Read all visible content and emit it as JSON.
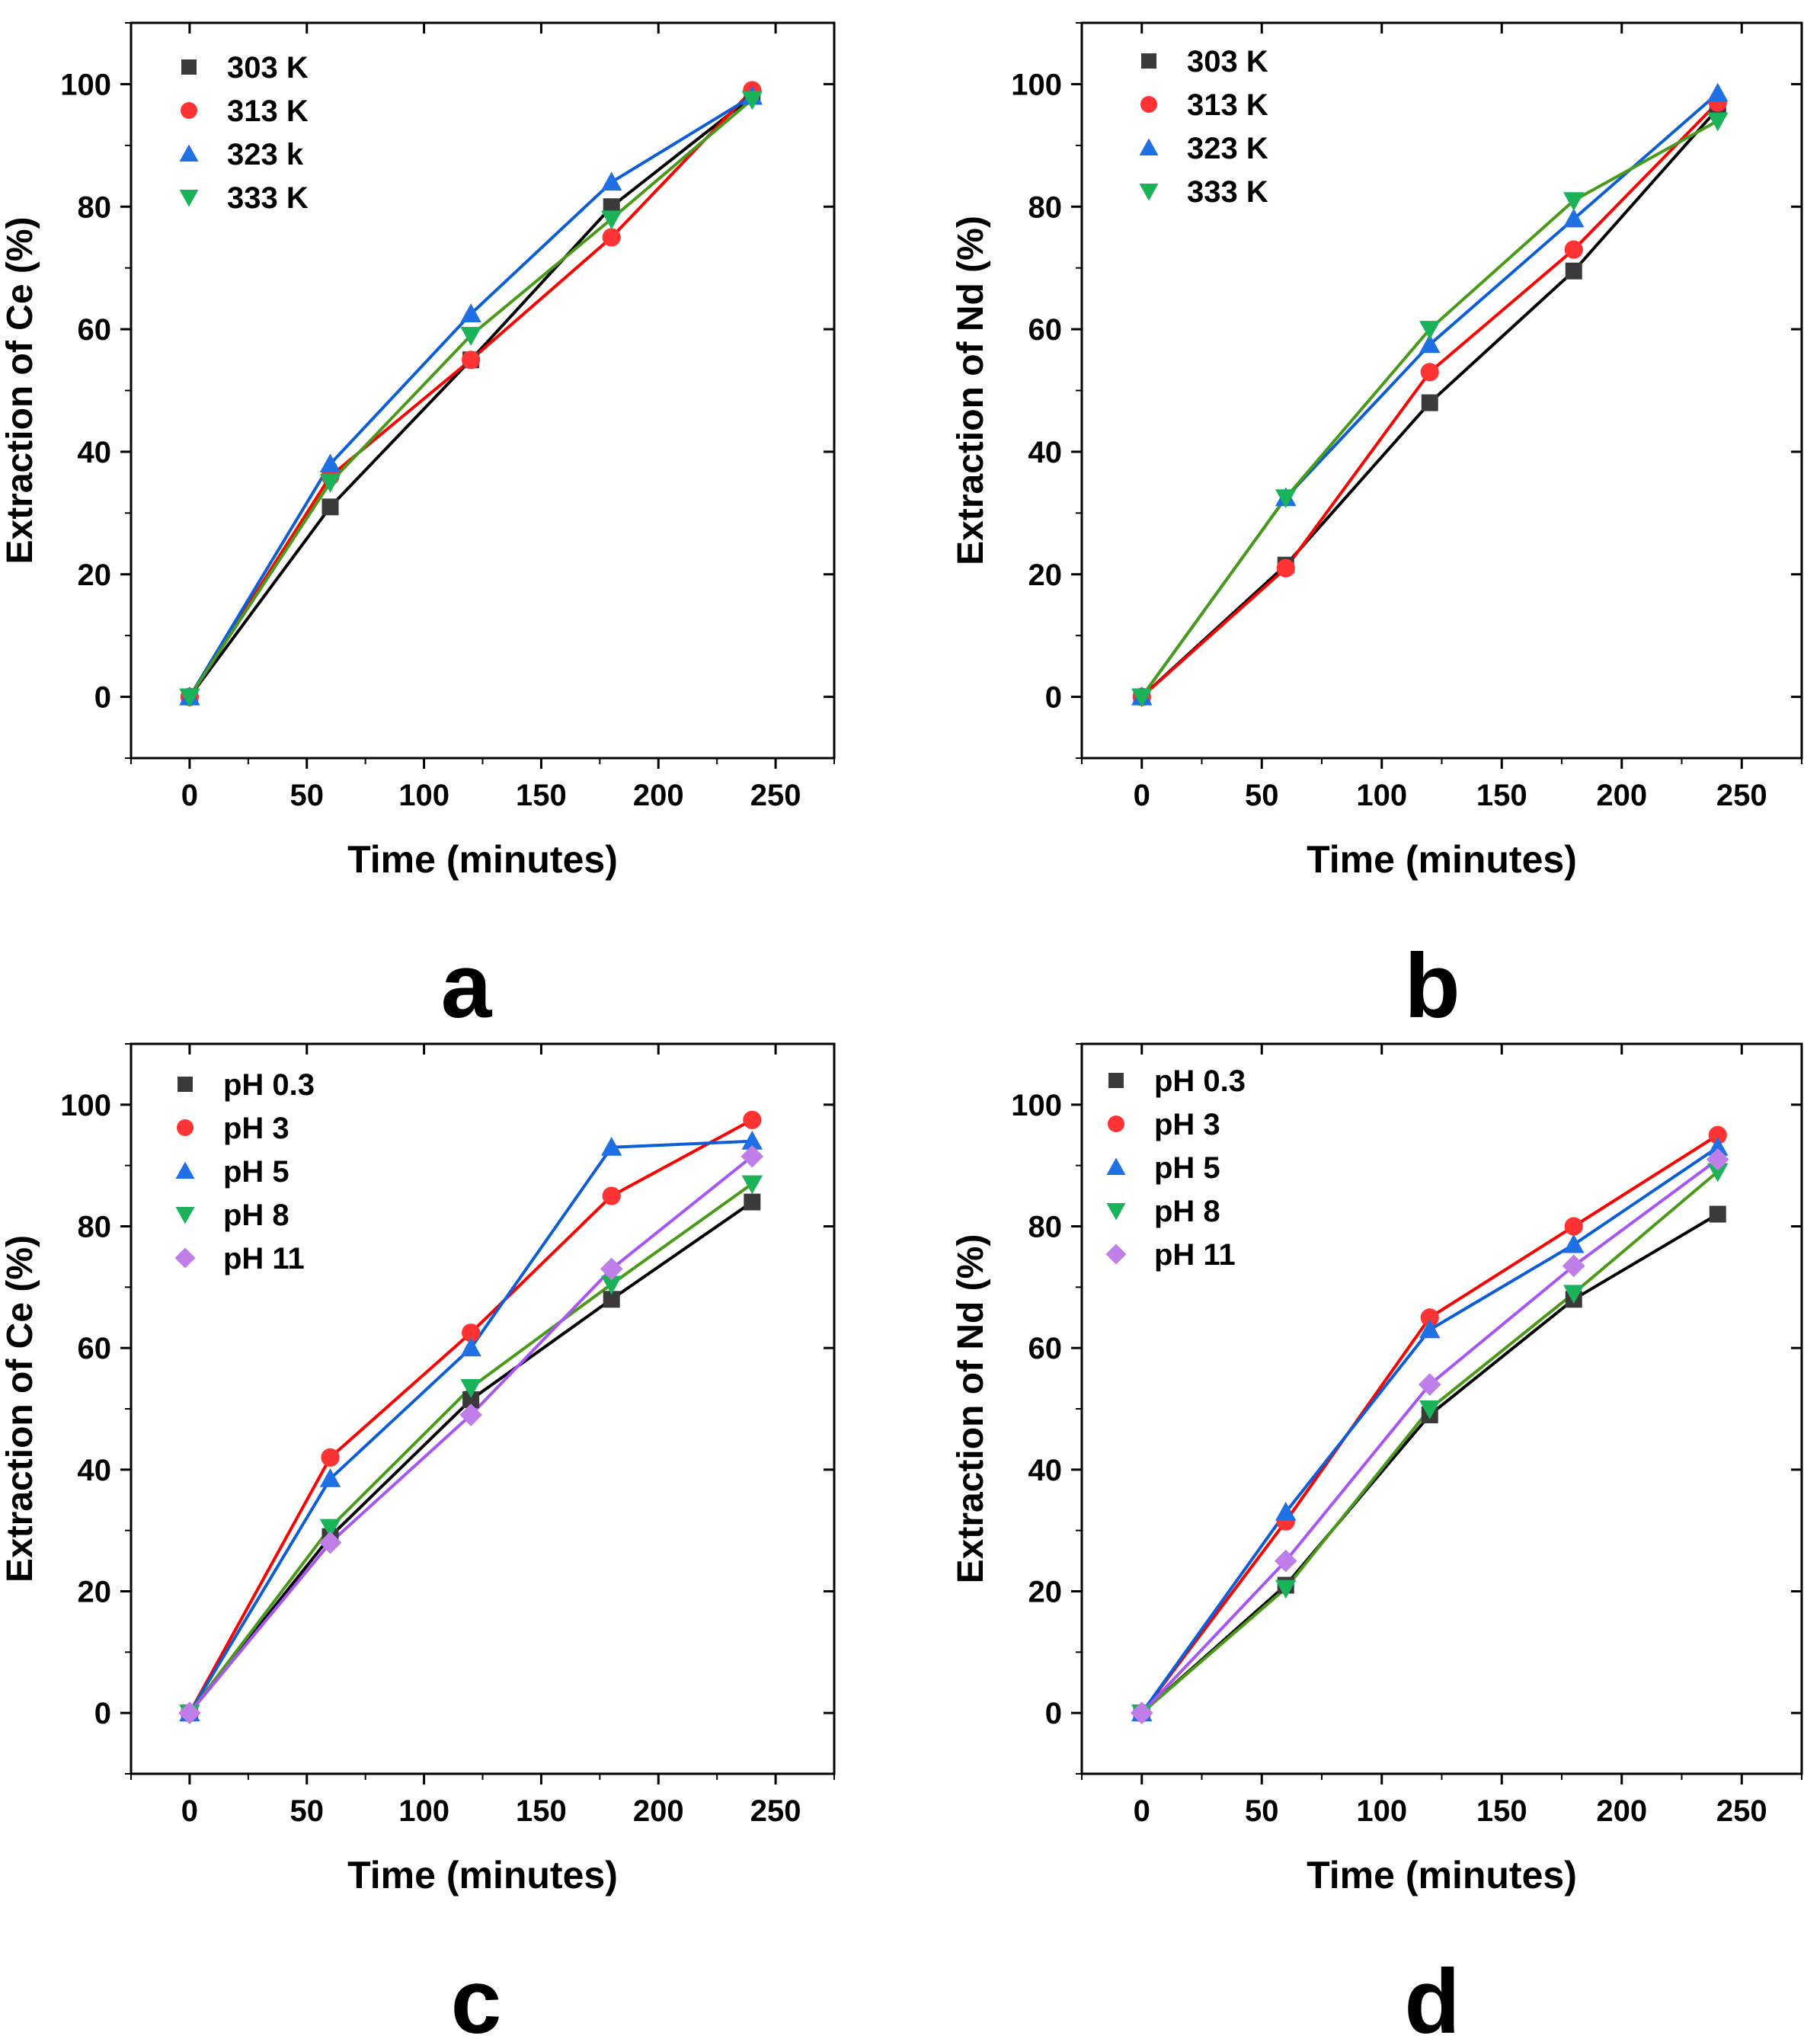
{
  "chart_data": [
    {
      "type": "line",
      "panel_label": "a",
      "xlabel": "Time (minutes)",
      "ylabel": "Extraction of Ce (%)",
      "xlim": [
        -25,
        275
      ],
      "ylim": [
        -10,
        110
      ],
      "xticks": [
        "0",
        "50",
        "100",
        "150",
        "200",
        "250"
      ],
      "xtick_values": [
        0,
        50,
        100,
        150,
        200,
        250
      ],
      "yticks": [
        "0",
        "20",
        "40",
        "60",
        "80",
        "100"
      ],
      "ytick_values": [
        0,
        20,
        40,
        60,
        80,
        100
      ],
      "legend_position": "top-left",
      "x": [
        0,
        60,
        120,
        180,
        240
      ],
      "series": [
        {
          "name": "303 K",
          "marker": "square",
          "color": "#000000",
          "marker_color": "#3a3a3a",
          "values": [
            0,
            31,
            55,
            80,
            98
          ]
        },
        {
          "name": "313 K",
          "marker": "circle",
          "color": "#ff0000",
          "marker_color": "#ff3333",
          "values": [
            0,
            36,
            55,
            75,
            99
          ]
        },
        {
          "name": "323 k",
          "marker": "triangle-up",
          "color": "#0b5ed7",
          "marker_color": "#1f6fe5",
          "values": [
            0,
            38,
            62.5,
            84,
            98
          ]
        },
        {
          "name": "333 K",
          "marker": "triangle-down",
          "color": "#4a9a1a",
          "marker_color": "#1bb35a",
          "values": [
            0,
            35,
            59,
            78,
            97.5
          ]
        }
      ]
    },
    {
      "type": "line",
      "panel_label": "b",
      "xlabel": "Time (minutes)",
      "ylabel": "Extraction of Nd (%)",
      "xlim": [
        -25,
        275
      ],
      "ylim": [
        -10,
        110
      ],
      "xticks": [
        "0",
        "50",
        "100",
        "150",
        "200",
        "250"
      ],
      "xtick_values": [
        0,
        50,
        100,
        150,
        200,
        250
      ],
      "yticks": [
        "0",
        "20",
        "40",
        "60",
        "80",
        "100"
      ],
      "ytick_values": [
        0,
        20,
        40,
        60,
        80,
        100
      ],
      "legend_position": "top-left",
      "x": [
        0,
        60,
        120,
        180,
        240
      ],
      "series": [
        {
          "name": "303 K",
          "marker": "square",
          "color": "#000000",
          "marker_color": "#3a3a3a",
          "values": [
            0,
            21.5,
            48,
            69.5,
            96
          ]
        },
        {
          "name": "313 K",
          "marker": "circle",
          "color": "#ff0000",
          "marker_color": "#ff3333",
          "values": [
            0,
            21,
            53,
            73,
            97
          ]
        },
        {
          "name": "323 K",
          "marker": "triangle-up",
          "color": "#0b5ed7",
          "marker_color": "#1f6fe5",
          "values": [
            0,
            32.5,
            57.5,
            78,
            98.5
          ]
        },
        {
          "name": "333 K",
          "marker": "triangle-down",
          "color": "#4a9a1a",
          "marker_color": "#1bb35a",
          "values": [
            0,
            32.5,
            60,
            81,
            94
          ]
        }
      ]
    },
    {
      "type": "line",
      "panel_label": "c",
      "xlabel": "Time (minutes)",
      "ylabel": "Extraction of Ce (%)",
      "xlim": [
        -25,
        275
      ],
      "ylim": [
        -10,
        110
      ],
      "xticks": [
        "0",
        "50",
        "100",
        "150",
        "200",
        "250"
      ],
      "xtick_values": [
        0,
        50,
        100,
        150,
        200,
        250
      ],
      "yticks": [
        "0",
        "20",
        "40",
        "60",
        "80",
        "100"
      ],
      "ytick_values": [
        0,
        20,
        40,
        60,
        80,
        100
      ],
      "legend_position": "top-left",
      "x": [
        0,
        60,
        120,
        180,
        240
      ],
      "series": [
        {
          "name": "pH 0.3",
          "marker": "square",
          "color": "#000000",
          "marker_color": "#3a3a3a",
          "values": [
            0,
            29,
            51.5,
            68,
            84
          ]
        },
        {
          "name": "pH 3",
          "marker": "circle",
          "color": "#ff0000",
          "marker_color": "#ff3333",
          "values": [
            0,
            42,
            62.5,
            85,
            97.5
          ]
        },
        {
          "name": "pH 5",
          "marker": "triangle-up",
          "color": "#0b5ed7",
          "marker_color": "#1f6fe5",
          "values": [
            0,
            38.5,
            60,
            93,
            94
          ]
        },
        {
          "name": "pH 8",
          "marker": "triangle-down",
          "color": "#4a9a1a",
          "marker_color": "#1bb35a",
          "values": [
            0,
            30.5,
            53.5,
            70.5,
            87
          ]
        },
        {
          "name": "pH 11",
          "marker": "diamond",
          "color": "#a855f7",
          "marker_color": "#c07ee8",
          "values": [
            0,
            28,
            49,
            73,
            91.5
          ]
        }
      ]
    },
    {
      "type": "line",
      "panel_label": "d",
      "xlabel": "Time (minutes)",
      "ylabel": "Extraction of Nd (%)",
      "xlim": [
        -25,
        275
      ],
      "ylim": [
        -10,
        110
      ],
      "xticks": [
        "0",
        "50",
        "100",
        "150",
        "200",
        "250"
      ],
      "xtick_values": [
        0,
        50,
        100,
        150,
        200,
        250
      ],
      "yticks": [
        "0",
        "20",
        "40",
        "60",
        "80",
        "100"
      ],
      "ytick_values": [
        0,
        20,
        40,
        60,
        80,
        100
      ],
      "legend_position": "top-left",
      "x": [
        0,
        60,
        120,
        180,
        240
      ],
      "series": [
        {
          "name": "pH 0.3",
          "marker": "square",
          "color": "#000000",
          "marker_color": "#3a3a3a",
          "values": [
            0,
            21,
            49,
            68,
            82
          ]
        },
        {
          "name": "pH 3",
          "marker": "circle",
          "color": "#ff0000",
          "marker_color": "#ff3333",
          "values": [
            0,
            31.5,
            65,
            80,
            95
          ]
        },
        {
          "name": "pH 5",
          "marker": "triangle-up",
          "color": "#0b5ed7",
          "marker_color": "#1f6fe5",
          "values": [
            0,
            33,
            63,
            77,
            93
          ]
        },
        {
          "name": "pH 8",
          "marker": "triangle-down",
          "color": "#4a9a1a",
          "marker_color": "#1bb35a",
          "values": [
            0,
            20.5,
            50,
            69,
            89
          ]
        },
        {
          "name": "pH 11",
          "marker": "diamond",
          "color": "#a855f7",
          "marker_color": "#c07ee8",
          "values": [
            0,
            25,
            54,
            73.5,
            91
          ]
        }
      ]
    }
  ]
}
